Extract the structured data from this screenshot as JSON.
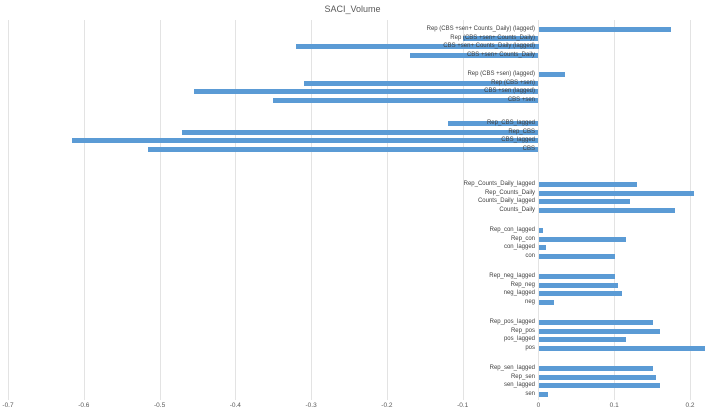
{
  "chart_data": {
    "type": "bar",
    "orientation": "horizontal",
    "title": "SACI_Volume",
    "bar_color": "#5B9BD5",
    "grid": true,
    "xlim": [
      -0.7,
      0.225
    ],
    "x_tick_values": [
      -0.7,
      -0.6,
      -0.5,
      -0.4,
      -0.3,
      -0.2,
      -0.1,
      0,
      0.1,
      0.2
    ],
    "x_tick_labels": [
      "-0.7",
      "-0.6",
      "-0.5",
      "-0.4",
      "-0.3",
      "-0.2",
      "-0.1",
      "0",
      "0.1",
      "0.2"
    ],
    "groups": [
      {
        "items": [
          {
            "label": "Rep (CBS +sen+ Counts_Daily) (lagged)",
            "value": 0.175
          },
          {
            "label": "Rep (CBS +sen+ Counts_Daily)",
            "value": -0.1
          },
          {
            "label": "CBS +sen+ Counts_Daily (lagged)",
            "value": -0.32
          },
          {
            "label": "CBS +sen+ Counts_Daily",
            "value": -0.17
          }
        ]
      },
      {
        "items": [
          {
            "label": "Rep (CBS +sen) (lagged)",
            "value": 0.035
          },
          {
            "label": "Rep (CBS +sen)",
            "value": -0.31
          },
          {
            "label": "CBS +sen (lagged)",
            "value": -0.455
          },
          {
            "label": "CBS +sen",
            "value": -0.35
          }
        ]
      },
      {
        "items": [
          {
            "label": "Rep_CBS_lagged",
            "value": -0.12
          },
          {
            "label": "Rep_CBS",
            "value": -0.47
          },
          {
            "label": "CBS_lagged",
            "value": -0.615
          },
          {
            "label": "CBS",
            "value": -0.515
          }
        ]
      },
      {
        "items": [
          {
            "label": "Rep_Counts_Daily_lagged",
            "value": 0.13
          },
          {
            "label": "Rep_Counts_Daily",
            "value": 0.205
          },
          {
            "label": "Counts_Daily_lagged",
            "value": 0.12
          },
          {
            "label": "Counts_Daily",
            "value": 0.18
          }
        ]
      },
      {
        "items": [
          {
            "label": "Rep_con_lagged",
            "value": 0.005
          },
          {
            "label": "Rep_con",
            "value": 0.115
          },
          {
            "label": "con_lagged",
            "value": 0.01
          },
          {
            "label": "con",
            "value": 0.1
          }
        ]
      },
      {
        "items": [
          {
            "label": "Rep_neg_lagged",
            "value": 0.1
          },
          {
            "label": "Rep_neg",
            "value": 0.105
          },
          {
            "label": "neg_lagged",
            "value": 0.11
          },
          {
            "label": "neg",
            "value": 0.02
          }
        ]
      },
      {
        "items": [
          {
            "label": "Rep_pos_lagged",
            "value": 0.15
          },
          {
            "label": "Rep_pos",
            "value": 0.16
          },
          {
            "label": "pos_lagged",
            "value": 0.115
          },
          {
            "label": "pos",
            "value": 0.22
          }
        ]
      },
      {
        "items": [
          {
            "label": "Rep_sen_lagged",
            "value": 0.15
          },
          {
            "label": "Rep_sen",
            "value": 0.155
          },
          {
            "label": "sen_lagged",
            "value": 0.16
          },
          {
            "label": "sen",
            "value": 0.012
          }
        ]
      }
    ]
  }
}
